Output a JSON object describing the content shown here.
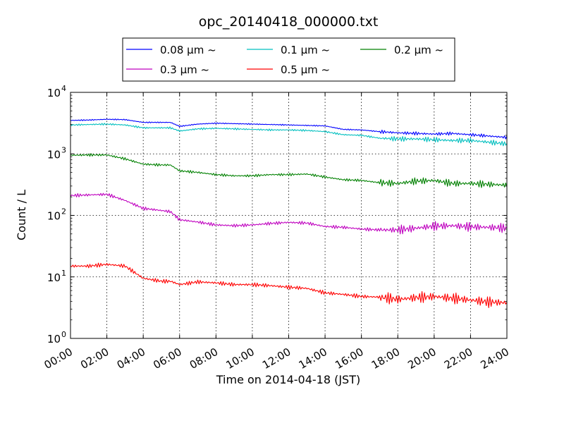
{
  "chart_data": {
    "type": "line",
    "title": "opc_20140418_000000.txt",
    "xlabel": "Time on 2014-04-18 (JST)",
    "ylabel": "Count / L",
    "yscale": "log",
    "ylim": [
      1,
      10000
    ],
    "xlim": [
      "00:00",
      "24:00"
    ],
    "x_ticks": [
      "00:00",
      "02:00",
      "04:00",
      "06:00",
      "08:00",
      "10:00",
      "12:00",
      "14:00",
      "16:00",
      "18:00",
      "20:00",
      "22:00",
      "24:00"
    ],
    "y_ticks": [
      {
        "base": "10",
        "exp": "0"
      },
      {
        "base": "10",
        "exp": "1"
      },
      {
        "base": "10",
        "exp": "2"
      },
      {
        "base": "10",
        "exp": "3"
      },
      {
        "base": "10",
        "exp": "4"
      }
    ],
    "grid": true,
    "legend_position": "top-center",
    "x": [
      "00:00",
      "01:00",
      "02:00",
      "03:00",
      "04:00",
      "05:00",
      "05:30",
      "06:00",
      "07:00",
      "08:00",
      "09:00",
      "10:00",
      "11:00",
      "12:00",
      "13:00",
      "14:00",
      "15:00",
      "16:00",
      "17:00",
      "18:00",
      "19:00",
      "20:00",
      "21:00",
      "22:00",
      "23:00",
      "24:00"
    ],
    "series": [
      {
        "name": "0.08 μm ~",
        "color": "#0000ff",
        "values": [
          3500,
          3550,
          3650,
          3600,
          3250,
          3250,
          3250,
          2800,
          3050,
          3150,
          3100,
          3050,
          3000,
          2950,
          2900,
          2850,
          2500,
          2450,
          2300,
          2200,
          2150,
          2100,
          2150,
          2050,
          1950,
          1850
        ]
      },
      {
        "name": "0.1 μm ~",
        "color": "#00bfbf",
        "values": [
          2950,
          3000,
          3050,
          2950,
          2650,
          2650,
          2650,
          2350,
          2550,
          2600,
          2550,
          2500,
          2450,
          2450,
          2400,
          2300,
          2050,
          2000,
          1800,
          1750,
          1750,
          1700,
          1650,
          1650,
          1550,
          1450
        ]
      },
      {
        "name": "0.2 μm ~",
        "color": "#008000",
        "values": [
          950,
          960,
          960,
          830,
          680,
          660,
          660,
          530,
          500,
          460,
          440,
          440,
          460,
          460,
          470,
          420,
          380,
          370,
          340,
          330,
          360,
          370,
          330,
          330,
          320,
          310
        ]
      },
      {
        "name": "0.3 μm ~",
        "color": "#bf00bf",
        "values": [
          210,
          215,
          220,
          175,
          130,
          120,
          115,
          85,
          78,
          70,
          68,
          70,
          74,
          77,
          75,
          66,
          64,
          60,
          58,
          58,
          62,
          67,
          68,
          65,
          64,
          62
        ]
      },
      {
        "name": "0.5 μm ~",
        "color": "#ff0000",
        "values": [
          15,
          15,
          16,
          15,
          9.5,
          8.5,
          8.5,
          7.5,
          8.3,
          8,
          7.5,
          7.5,
          7.2,
          6.8,
          6.5,
          5.5,
          5.2,
          4.8,
          4.7,
          4.3,
          4.6,
          4.8,
          4.5,
          4.2,
          3.9,
          3.8
        ]
      }
    ]
  }
}
